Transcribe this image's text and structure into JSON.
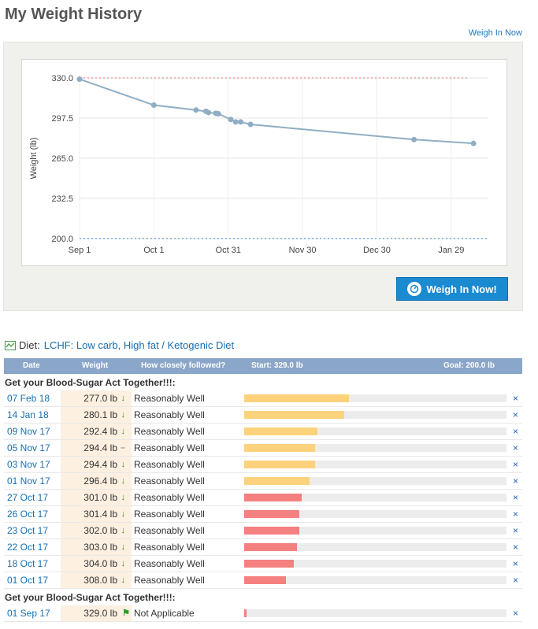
{
  "page": {
    "title": "My Weight History",
    "weigh_in_link": "Weigh In Now"
  },
  "chart_data": {
    "type": "line",
    "ylabel": "Weight (lb)",
    "xlabel": "",
    "ylim": [
      200,
      330
    ],
    "y_ticks": [
      "330.0",
      "297.5",
      "265.0",
      "232.5",
      "200.0"
    ],
    "x_ticks": [
      "Sep 1",
      "Oct 1",
      "Oct 31",
      "Nov 30",
      "Dec 30",
      "Jan 29"
    ],
    "start_line": 330.0,
    "goal_line": 200.0,
    "series": [
      {
        "x": [
          "2017-09-01",
          "2017-10-01",
          "2017-10-18",
          "2017-10-22",
          "2017-10-23",
          "2017-10-26",
          "2017-10-27",
          "2017-11-01",
          "2017-11-03",
          "2017-11-05",
          "2017-11-09",
          "2018-01-14",
          "2018-02-07"
        ],
        "values": [
          329.0,
          308.0,
          304.0,
          303.0,
          302.0,
          301.4,
          301.0,
          296.4,
          294.4,
          294.4,
          292.4,
          280.1,
          277.0
        ],
        "color": "#8faec4"
      }
    ]
  },
  "button": {
    "label": "Weigh In Now!"
  },
  "diet": {
    "label": "Diet:",
    "name": "LCHF: Low carb, High fat / Ketogenic Diet"
  },
  "table": {
    "headers": {
      "date": "Date",
      "weight": "Weight",
      "followed": "How closely followed?",
      "start": "Start: 329.0 lb",
      "goal": "Goal: 200.0 lb"
    },
    "group1_title": "Get your Blood-Sugar Act Together!!!:",
    "group2_title": "Get your Blood-Sugar Act Together!!!:",
    "rows": [
      {
        "date": "07 Feb 18",
        "weight": "277.0 lb",
        "trend": "↓",
        "followed": "Reasonably Well",
        "progress": 0.4,
        "color": "#fdd27c"
      },
      {
        "date": "14 Jan 18",
        "weight": "280.1 lb",
        "trend": "↓",
        "followed": "Reasonably Well",
        "progress": 0.38,
        "color": "#fdd27c"
      },
      {
        "date": "09 Nov 17",
        "weight": "292.4 lb",
        "trend": "↓",
        "followed": "Reasonably Well",
        "progress": 0.28,
        "color": "#fdd27c"
      },
      {
        "date": "05 Nov 17",
        "weight": "294.4 lb",
        "trend": "–",
        "followed": "Reasonably Well",
        "progress": 0.27,
        "color": "#fdd27c"
      },
      {
        "date": "03 Nov 17",
        "weight": "294.4 lb",
        "trend": "↓",
        "followed": "Reasonably Well",
        "progress": 0.27,
        "color": "#fdd27c"
      },
      {
        "date": "01 Nov 17",
        "weight": "296.4 lb",
        "trend": "↓",
        "followed": "Reasonably Well",
        "progress": 0.25,
        "color": "#fdd27c"
      },
      {
        "date": "27 Oct 17",
        "weight": "301.0 lb",
        "trend": "↓",
        "followed": "Reasonably Well",
        "progress": 0.22,
        "color": "#f48080"
      },
      {
        "date": "26 Oct 17",
        "weight": "301.4 lb",
        "trend": "↓",
        "followed": "Reasonably Well",
        "progress": 0.21,
        "color": "#f48080"
      },
      {
        "date": "23 Oct 17",
        "weight": "302.0 lb",
        "trend": "↓",
        "followed": "Reasonably Well",
        "progress": 0.21,
        "color": "#f48080"
      },
      {
        "date": "22 Oct 17",
        "weight": "303.0 lb",
        "trend": "↓",
        "followed": "Reasonably Well",
        "progress": 0.2,
        "color": "#f48080"
      },
      {
        "date": "18 Oct 17",
        "weight": "304.0 lb",
        "trend": "↓",
        "followed": "Reasonably Well",
        "progress": 0.19,
        "color": "#f48080"
      },
      {
        "date": "01 Oct 17",
        "weight": "308.0 lb",
        "trend": "↓",
        "followed": "Reasonably Well",
        "progress": 0.16,
        "color": "#f48080"
      }
    ],
    "last_row": {
      "date": "01 Sep 17",
      "weight": "329.0 lb",
      "trend": "⚑",
      "followed": "Not Applicable",
      "progress": 0.01,
      "color": "#f48080"
    },
    "delete_glyph": "×"
  }
}
